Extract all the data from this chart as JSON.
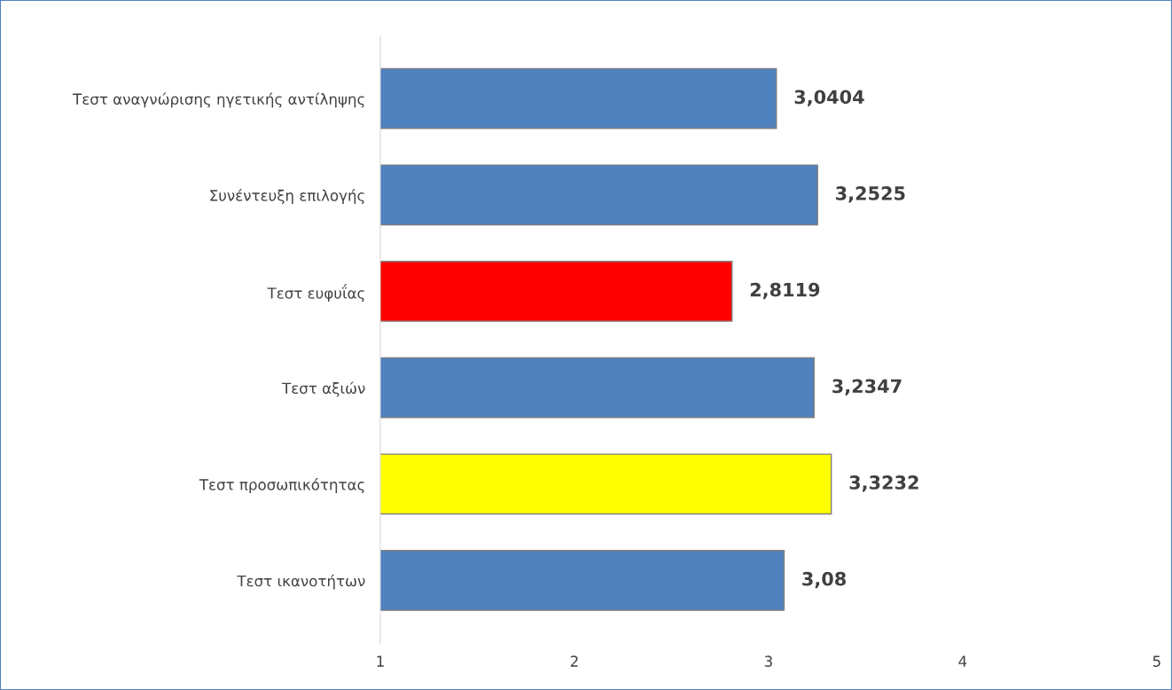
{
  "chart_data": {
    "type": "bar",
    "orientation": "horizontal",
    "categories": [
      "Τεστ αναγνώρισης ηγετικής αντίληψης",
      "Συνέντευξη επιλογής",
      "Τεστ ευφυΐας",
      "Τεστ αξιών",
      "Τεστ προσωπικότητας",
      "Τεστ ικανοτήτων"
    ],
    "values": [
      3.0404,
      3.2525,
      2.8119,
      3.2347,
      3.3232,
      3.08
    ],
    "value_labels": [
      "3,0404",
      "3,2525",
      "2,8119",
      "3,2347",
      "3,3232",
      "3,08"
    ],
    "colors": [
      "#4f81bd",
      "#4f81bd",
      "#ff0000",
      "#4f81bd",
      "#ffff00",
      "#4f81bd"
    ],
    "xlim": [
      1,
      5
    ],
    "xticks": [
      1,
      2,
      3,
      4,
      5
    ],
    "grid": false,
    "legend": false
  }
}
